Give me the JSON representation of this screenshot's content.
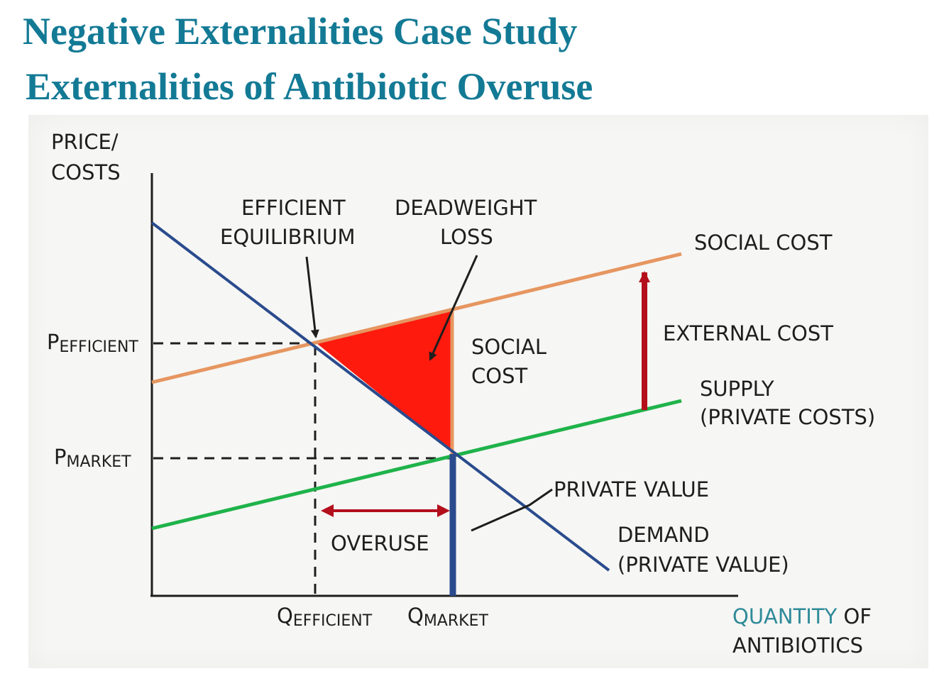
{
  "header": {
    "title": "Negative Externalities Case Study",
    "subtitle": "Externalities of Antibiotic Overuse"
  },
  "colors": {
    "title": "#137a95",
    "axis_teal": "#2f8a99",
    "demand": "#2a4b8d",
    "social_cost": "#e69660",
    "supply": "#1fb34a",
    "deadweight_loss": "#ff1a0e",
    "external_cost": "#b30f1c",
    "ink": "#1e1e1e"
  },
  "diagram": {
    "y_axis_label_line1": "PRICE/",
    "y_axis_label_line2": "COSTS",
    "x_axis_label_part1": "QUANTITY",
    "x_axis_label_part2": "OF",
    "x_axis_label_line2": "ANTIBIOTICS",
    "p_efficient_main": "P",
    "p_efficient_sub": "EFFICIENT",
    "p_market_main": "P",
    "p_market_sub": "MARKET",
    "q_efficient_main": "Q",
    "q_efficient_sub": "EFFICIENT",
    "q_market_main": "Q",
    "q_market_sub": "MARKET",
    "efficient_eq_line1": "EFFICIENT",
    "efficient_eq_line2": "EQUILIBRIUM",
    "dwl_line1": "DEADWEIGHT",
    "dwl_line2": "LOSS",
    "social_cost_label": "SOCIAL COST",
    "social_cost_seg_line1": "SOCIAL",
    "social_cost_seg_line2": "COST",
    "external_cost_label": "EXTERNAL COST",
    "supply_line1": "SUPPLY",
    "supply_line2": "(PRIVATE COSTS)",
    "private_value_label": "PRIVATE VALUE",
    "demand_line1": "DEMAND",
    "demand_line2": "(PRIVATE VALUE)",
    "overuse_label": "OVERUSE"
  }
}
